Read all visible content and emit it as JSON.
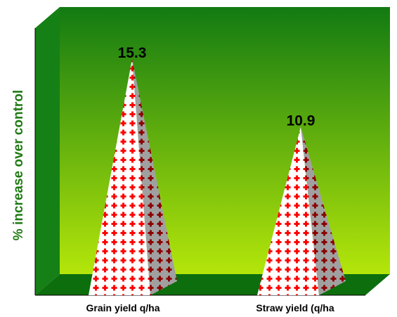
{
  "chart_data": {
    "type": "bar",
    "style": "3d-pyramid",
    "categories": [
      "Grain yield q/ha",
      "Straw yield (q/ha"
    ],
    "values": [
      15.3,
      10.9
    ],
    "data_labels": [
      "15.3",
      "10.9"
    ],
    "title": "",
    "xlabel": "",
    "ylabel": "% increase over control",
    "ylim": [
      0,
      17.3
    ],
    "grid": false,
    "legend": "none",
    "colors": {
      "wall_top": "#127a12",
      "wall_bottom": "#b4e60a",
      "floor": "#0d6e0d",
      "side_wall": "#158015",
      "pyramid_front": "#ffffff",
      "pyramid_dots": "#ff0000",
      "pyramid_shade": "#a0a0a0",
      "pyramid_shade_dots": "#8b0000",
      "ylabel_color": "#1e7a12"
    }
  }
}
